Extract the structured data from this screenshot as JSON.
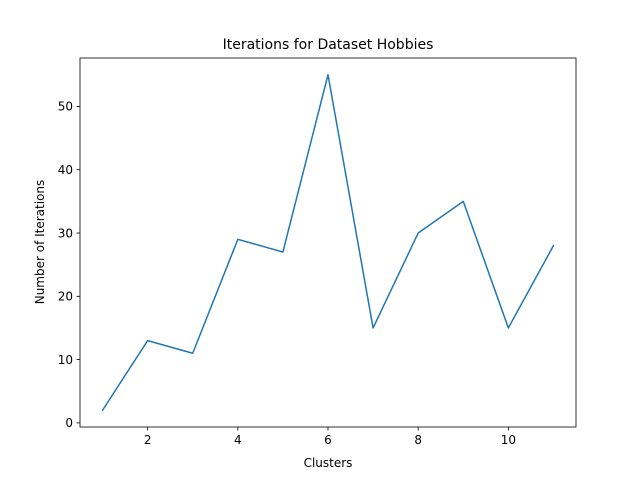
{
  "chart_data": {
    "type": "line",
    "title": "Iterations for Dataset Hobbies",
    "xlabel": "Clusters",
    "ylabel": "Number of Iterations",
    "x": [
      1,
      2,
      3,
      4,
      5,
      6,
      7,
      8,
      9,
      10,
      11
    ],
    "series": [
      {
        "values": [
          2,
          13,
          11,
          29,
          27,
          55,
          15,
          30,
          35,
          15,
          28
        ],
        "color": "#1f77b4"
      }
    ],
    "xlim": [
      0.5,
      11.5
    ],
    "ylim": [
      -0.65,
      57.65
    ],
    "xticks": [
      2,
      4,
      6,
      8,
      10
    ],
    "yticks": [
      0,
      10,
      20,
      30,
      40,
      50
    ],
    "grid": false,
    "legend": "none"
  }
}
